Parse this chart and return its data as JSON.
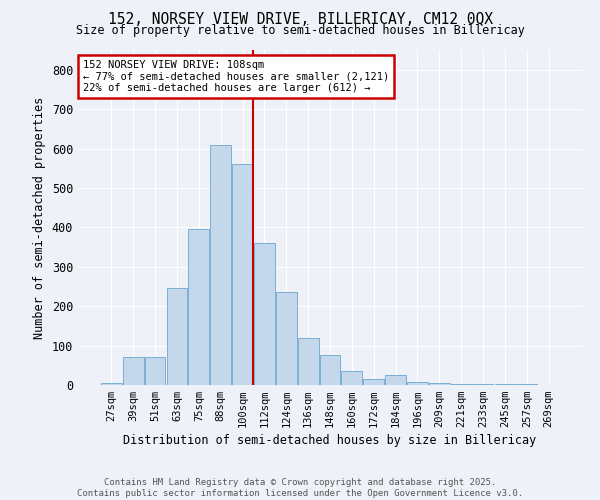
{
  "title1": "152, NORSEY VIEW DRIVE, BILLERICAY, CM12 0QX",
  "title2": "Size of property relative to semi-detached houses in Billericay",
  "xlabel": "Distribution of semi-detached houses by size in Billericay",
  "ylabel": "Number of semi-detached properties",
  "bin_labels": [
    "27sqm",
    "39sqm",
    "51sqm",
    "63sqm",
    "75sqm",
    "88sqm",
    "100sqm",
    "112sqm",
    "124sqm",
    "136sqm",
    "148sqm",
    "160sqm",
    "172sqm",
    "184sqm",
    "196sqm",
    "209sqm",
    "221sqm",
    "233sqm",
    "245sqm",
    "257sqm",
    "269sqm"
  ],
  "bar_heights": [
    5,
    70,
    70,
    245,
    395,
    610,
    560,
    360,
    235,
    120,
    75,
    35,
    15,
    25,
    8,
    5,
    3,
    2,
    2,
    2,
    1
  ],
  "bar_color": "#c5d8eb",
  "bar_edge_color": "#7aafd4",
  "vline_index": 7,
  "vline_color": "#cc0000",
  "annotation_title": "152 NORSEY VIEW DRIVE: 108sqm",
  "annotation_line1": "← 77% of semi-detached houses are smaller (2,121)",
  "annotation_line2": "22% of semi-detached houses are larger (612) →",
  "annotation_box_color": "#ffffff",
  "annotation_border_color": "#cc0000",
  "ylim": [
    0,
    850
  ],
  "yticks": [
    0,
    100,
    200,
    300,
    400,
    500,
    600,
    700,
    800
  ],
  "footnote1": "Contains HM Land Registry data © Crown copyright and database right 2025.",
  "footnote2": "Contains public sector information licensed under the Open Government Licence v3.0.",
  "bg_color": "#eef2f8"
}
